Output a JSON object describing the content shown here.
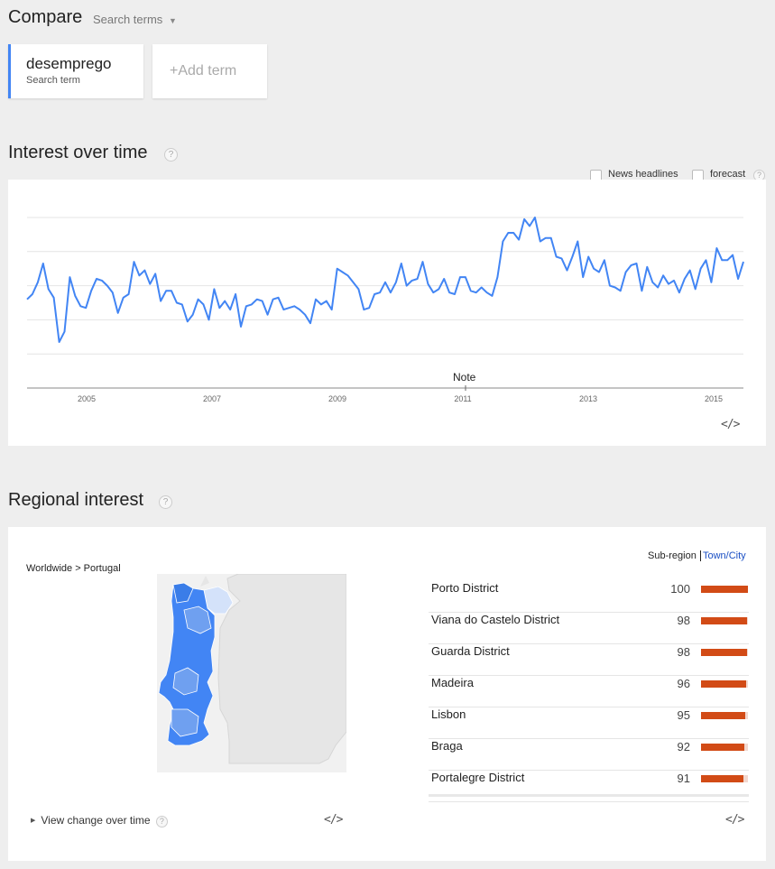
{
  "compare": {
    "title": "Compare",
    "search_terms_label": "Search terms",
    "term": {
      "name": "desemprego",
      "sub": "Search term"
    },
    "add_term": "+Add term"
  },
  "interest": {
    "title": "Interest over time",
    "help": "?",
    "news_headlines": "News headlines",
    "forecast": "forecast",
    "note": "Note",
    "embed": "</>"
  },
  "chart_data": {
    "type": "line",
    "xlabel": "",
    "ylabel": "",
    "x_ticks": [
      "2005",
      "2007",
      "2009",
      "2011",
      "2013",
      "2015"
    ],
    "grid": true,
    "color": "#4285f4",
    "series": [
      {
        "values": [
          52,
          55,
          62,
          73,
          58,
          53,
          27,
          33,
          65,
          54,
          48,
          47,
          57,
          64,
          63,
          60,
          56,
          44,
          53,
          55,
          74,
          66,
          69,
          61,
          67,
          51,
          57,
          57,
          50,
          49,
          39,
          43,
          52,
          49,
          40,
          58,
          47,
          51,
          46,
          55,
          36,
          48,
          49,
          52,
          51,
          43,
          52,
          53,
          46,
          47,
          48,
          46,
          43,
          38,
          52,
          49,
          51,
          46,
          70,
          68,
          66,
          62,
          58,
          46,
          47,
          55,
          56,
          62,
          56,
          62,
          73,
          60,
          63,
          64,
          74,
          61,
          56,
          58,
          64,
          56,
          55,
          65,
          65,
          57,
          56,
          59,
          56,
          54,
          65,
          86,
          91,
          91,
          87,
          99,
          95,
          100,
          86,
          88,
          88,
          77,
          76,
          69,
          77,
          86,
          65,
          77,
          70,
          68,
          75,
          60,
          59,
          57,
          68,
          72,
          73,
          57,
          71,
          62,
          59,
          66,
          61,
          63,
          56,
          64,
          69,
          58,
          70,
          75,
          62,
          82,
          75,
          75,
          78,
          64,
          74
        ]
      }
    ]
  },
  "regional": {
    "title": "Regional interest",
    "help": "?",
    "breadcrumb": "Worldwide > Portugal",
    "subregion_label": "Sub-region",
    "town_label": "Town/City",
    "view_change": "View change over time",
    "embed_left": "</>",
    "embed_right": "</>",
    "rows": [
      {
        "name": "Porto District",
        "value": "100",
        "bar": 100
      },
      {
        "name": "Viana do Castelo District",
        "value": "98",
        "bar": 98
      },
      {
        "name": "Guarda District",
        "value": "98",
        "bar": 98
      },
      {
        "name": "Madeira",
        "value": "96",
        "bar": 96
      },
      {
        "name": "Lisbon",
        "value": "95",
        "bar": 95
      },
      {
        "name": "Braga",
        "value": "92",
        "bar": 92
      },
      {
        "name": "Portalegre District",
        "value": "91",
        "bar": 91
      }
    ],
    "map_colors": {
      "primary": "#4285f4",
      "light": "#6fa0f0",
      "faint": "#d4e2fa",
      "land": "#f1f1f1"
    }
  }
}
